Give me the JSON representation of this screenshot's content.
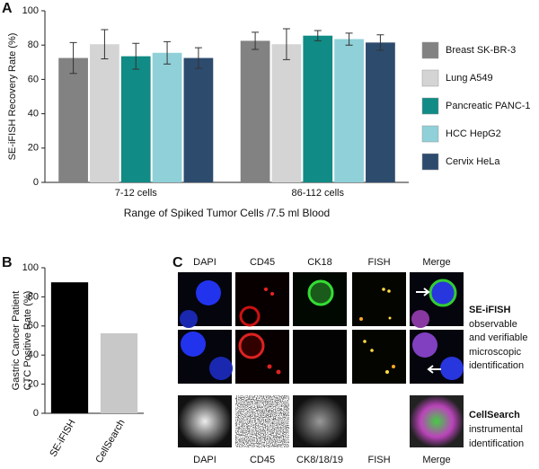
{
  "chart_data": [
    {
      "type": "grouped_bar",
      "panel_label": "A",
      "ylabel": "SE-iFISH Recovery Rate (%)",
      "xlabel": "Range  of  Spiked  Tumor Cells /7.5 ml  Blood",
      "categories": [
        "7-12 cells",
        "86-112 cells"
      ],
      "series": [
        {
          "name": "Breast SK-BR-3",
          "color": "#828282",
          "values": [
            72.5,
            82.5
          ],
          "errors": [
            9,
            5
          ]
        },
        {
          "name": "Lung A549",
          "color": "#d4d4d4",
          "values": [
            80.5,
            80.5
          ],
          "errors": [
            8.5,
            9
          ]
        },
        {
          "name": "Pancreatic PANC-1",
          "color": "#108b85",
          "values": [
            73.5,
            85.5
          ],
          "errors": [
            7.5,
            3
          ]
        },
        {
          "name": "HCC  HepG2",
          "color": "#90d0d8",
          "values": [
            75.5,
            83.5
          ],
          "errors": [
            6.5,
            3.5
          ]
        },
        {
          "name": "Cervix HeLa",
          "color": "#2d4b6d",
          "values": [
            72.5,
            81.5
          ],
          "errors": [
            6,
            4.5
          ]
        }
      ],
      "ylim": [
        0,
        100
      ],
      "yticks": [
        0,
        20,
        40,
        60,
        80,
        100
      ],
      "legend": "right"
    },
    {
      "type": "bar",
      "panel_label": "B",
      "ylabel": [
        "Gastric Cancer Patient",
        "CTC Positive  Rate (%)"
      ],
      "categories": [
        "SE-iFISH",
        "CellSearch"
      ],
      "values": [
        90,
        55
      ],
      "colors": [
        "#000000",
        "#c8c8c8"
      ],
      "ylim": [
        0,
        100
      ],
      "yticks": [
        0,
        20,
        40,
        60,
        80,
        100
      ]
    }
  ],
  "panel_c": {
    "label": "C",
    "top_headers": [
      "DAPI",
      "CD45",
      "CK18",
      "FISH",
      "Merge"
    ],
    "bottom_headers": [
      "DAPI",
      "CD45",
      "CK8/18/19",
      "FISH",
      "Merge"
    ],
    "methods": [
      {
        "title": "SE-iFISH",
        "lines": [
          "observable",
          "and verifiable",
          "microscopic",
          "identification"
        ]
      },
      {
        "title": "CellSearch",
        "lines": [
          "instrumental",
          "identification"
        ]
      }
    ]
  }
}
